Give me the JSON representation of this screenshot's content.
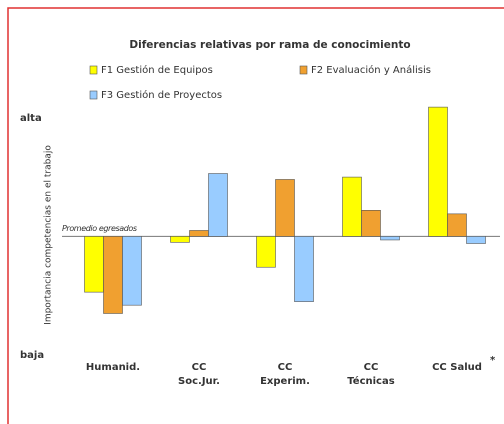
{
  "chart_data": {
    "type": "bar",
    "title": "Diferencias relativas por rama de conocimiento",
    "y_label": "Importancia competencias en el trabajo",
    "categories": [
      "Humanid.",
      "CC\nSoc.Jur.",
      "CC\nExperim.",
      "CC\nTécnicas",
      "CC Salud"
    ],
    "series": [
      {
        "name": "F1 Gestión de Equipos",
        "color": "#ffff00",
        "values": [
          -0.47,
          -0.05,
          -0.26,
          0.5,
          1.09
        ]
      },
      {
        "name": "F2 Evaluación y Análisis",
        "color": "#f0a030",
        "values": [
          -0.65,
          0.05,
          0.48,
          0.22,
          0.19
        ]
      },
      {
        "name": "F3 Gestión de Proyectos",
        "color": "#99ccff",
        "values": [
          -0.58,
          0.53,
          -0.55,
          -0.03,
          -0.06
        ]
      }
    ],
    "ylim": [
      -1,
      1.15
    ],
    "yticks": [
      {
        "value": 1,
        "label": "alta"
      },
      {
        "value": 0,
        "label": "Promedio egresados"
      },
      {
        "value": -1,
        "label": "baja"
      }
    ],
    "annotations": [
      "*"
    ]
  }
}
